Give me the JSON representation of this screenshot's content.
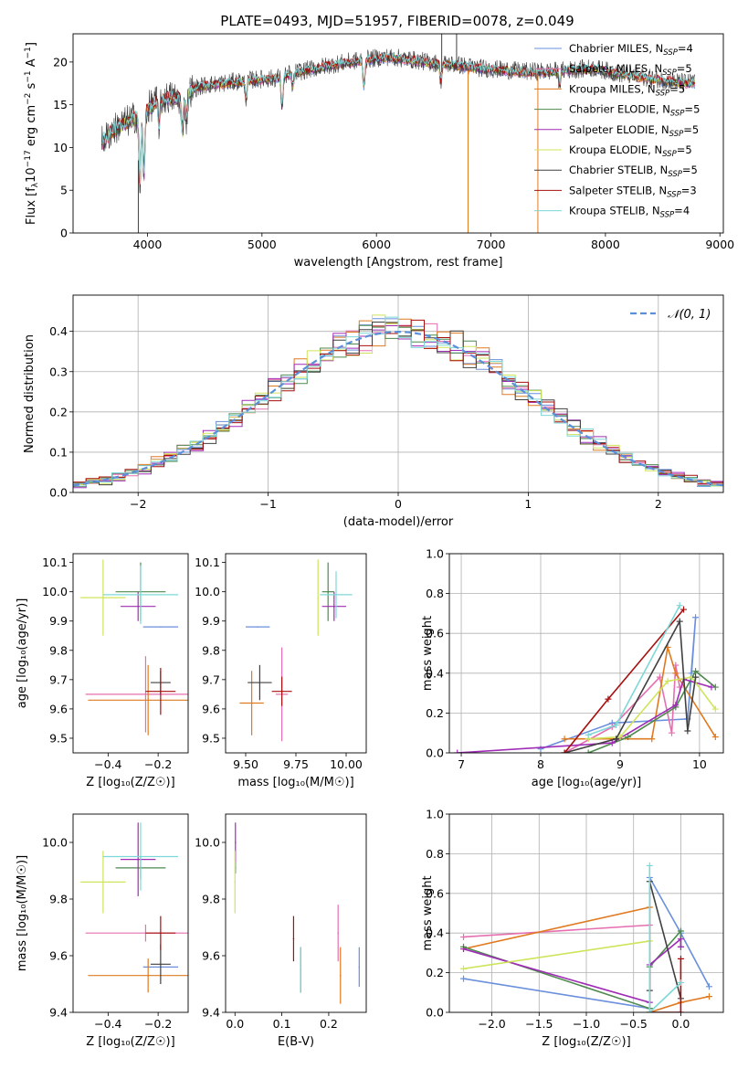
{
  "figure": {
    "title": "PLATE=0493, MJD=51957, FIBERID=0078, z=0.049"
  },
  "colors": {
    "series": [
      "#6a8fdc",
      "#e56fb0",
      "#e07a20",
      "#4e8a4e",
      "#a02cb6",
      "#cfe45a",
      "#404040",
      "#a80f0f",
      "#7ed8d8"
    ],
    "grid": "#b0b0b0",
    "normal_curve": "#5b8fd9"
  },
  "chart_data": [
    {
      "id": "spectrum",
      "type": "line",
      "title": "PLATE=0493, MJD=51957, FIBERID=0078, z=0.049",
      "xlabel": "wavelength [Angstrom, rest frame]",
      "ylabel_parts": [
        "Flux [f",
        "λ",
        "10",
        "−17",
        " erg cm",
        "−2",
        " s",
        "−1",
        " A",
        "−1",
        "]"
      ],
      "xlim": [
        3350,
        9030
      ],
      "ylim": [
        0,
        23.3
      ],
      "xticks": [
        "4000",
        "5000",
        "6000",
        "7000",
        "8000",
        "9000"
      ],
      "xtick_values": [
        4000,
        5000,
        6000,
        7000,
        8000,
        9000
      ],
      "yticks": [
        "0",
        "5",
        "10",
        "15",
        "20"
      ],
      "ytick_values": [
        0,
        5,
        10,
        15,
        20
      ],
      "grid": false,
      "legend_position": "top-right",
      "legend": [
        {
          "name": "Chabrier MILES",
          "nssp": "4"
        },
        {
          "name": "Salpeter MILES",
          "nssp": "5"
        },
        {
          "name": "Kroupa MILES",
          "nssp": "5"
        },
        {
          "name": "Chabrier ELODIE",
          "nssp": "5"
        },
        {
          "name": "Salpeter ELODIE",
          "nssp": "5"
        },
        {
          "name": "Kroupa ELODIE",
          "nssp": "5"
        },
        {
          "name": "Chabrier STELIB",
          "nssp": "5"
        },
        {
          "name": "Salpeter STELIB",
          "nssp": "3"
        },
        {
          "name": "Kroupa STELIB",
          "nssp": "4"
        }
      ],
      "legend_color_index": [
        0,
        1,
        2,
        3,
        4,
        5,
        6,
        7,
        8
      ],
      "nssp_prefix": "N",
      "nssp_sub": "SSP",
      "continuum": {
        "x": [
          3600,
          3700,
          3800,
          3900,
          4000,
          4100,
          4200,
          4300,
          4400,
          4500,
          4700,
          4900,
          5100,
          5300,
          5500,
          5700,
          5900,
          6100,
          6300,
          6500,
          6700,
          6900,
          7100,
          7300,
          7500,
          7700,
          7900,
          8100,
          8300,
          8500,
          8700
        ],
        "y": [
          10.5,
          12.0,
          12.8,
          13.5,
          14.5,
          15.5,
          15.8,
          15.6,
          16.8,
          17.2,
          17.5,
          17.8,
          18.0,
          18.7,
          19.3,
          19.8,
          20.2,
          20.5,
          20.2,
          19.8,
          19.6,
          19.2,
          19.0,
          18.8,
          18.8,
          19.0,
          19.2,
          18.6,
          18.2,
          17.8,
          17.5
        ]
      },
      "absorption_features": [
        {
          "x": 3934,
          "depth": 8.5
        },
        {
          "x": 3969,
          "depth": 7.5
        },
        {
          "x": 4102,
          "depth": 3
        },
        {
          "x": 4304,
          "depth": 4
        },
        {
          "x": 4340,
          "depth": 3
        },
        {
          "x": 4861,
          "depth": 2
        },
        {
          "x": 5175,
          "depth": 3.5
        },
        {
          "x": 5270,
          "depth": 1.5
        },
        {
          "x": 5890,
          "depth": 3
        },
        {
          "x": 6563,
          "depth": 2
        },
        {
          "x": 7600,
          "depth": 1.5
        }
      ],
      "spikes": [
        {
          "x": 3920,
          "y_low": 0,
          "y_high": 8.5,
          "color_index": 6
        },
        {
          "x": 6570,
          "y_low": 18.8,
          "y_high": 23.3,
          "color_index": 6
        },
        {
          "x": 6700,
          "y_low": 19.3,
          "y_high": 23.3,
          "color_index": 6
        },
        {
          "x": 6800,
          "y_low": 0,
          "y_high": 19.0,
          "color_index": 2
        },
        {
          "x": 7410,
          "y_low": 0,
          "y_high": 18.5,
          "color_index": 2
        }
      ]
    },
    {
      "id": "residuals",
      "type": "histogram",
      "xlabel": "(data-model)/error",
      "ylabel": "Normed distribution",
      "xlim": [
        -2.5,
        2.5
      ],
      "ylim": [
        0,
        0.49
      ],
      "xticks": [
        "−2",
        "−1",
        "0",
        "1",
        "2"
      ],
      "xtick_values": [
        -2,
        -1,
        0,
        1,
        2
      ],
      "yticks": [
        "0.0",
        "0.1",
        "0.2",
        "0.3",
        "0.4"
      ],
      "ytick_values": [
        0,
        0.1,
        0.2,
        0.3,
        0.4
      ],
      "grid": true,
      "legend_position": "top-right",
      "legend": [
        {
          "label": "𝒩(0, 1)"
        }
      ],
      "bin_width": 0.1,
      "normal_curve": {
        "mean": 0,
        "sigma": 1,
        "style": "dashed"
      }
    },
    {
      "id": "age_vs_Z",
      "type": "errorbar",
      "xlabel": "Z [log₁₀(Z/Z☉)]",
      "ylabel": "age  [log₁₀(age/yr)]",
      "xlim": [
        -0.54,
        -0.08
      ],
      "ylim": [
        9.45,
        10.13
      ],
      "xticks": [
        "−0.4",
        "−0.2"
      ],
      "xtick_values": [
        -0.4,
        -0.2
      ],
      "yticks": [
        "9.5",
        "9.6",
        "9.7",
        "9.8",
        "9.9",
        "10.0",
        "10.1"
      ],
      "ytick_values": [
        9.5,
        9.6,
        9.7,
        9.8,
        9.9,
        10.0,
        10.1
      ],
      "grid": false,
      "points": [
        {
          "x": -0.19,
          "y": 9.88,
          "xerr": 0.07,
          "yerr": 0.0,
          "color_index": 0
        },
        {
          "x": -0.25,
          "y": 9.65,
          "xerr": 0.24,
          "yerr": 0.13,
          "color_index": 1
        },
        {
          "x": -0.24,
          "y": 9.63,
          "xerr": 0.24,
          "yerr": 0.12,
          "color_index": 2
        },
        {
          "x": -0.27,
          "y": 10.0,
          "xerr": 0.1,
          "yerr": 0.1,
          "color_index": 3
        },
        {
          "x": -0.28,
          "y": 9.95,
          "xerr": 0.07,
          "yerr": 0.05,
          "color_index": 4
        },
        {
          "x": -0.42,
          "y": 9.98,
          "xerr": 0.09,
          "yerr": 0.13,
          "color_index": 5
        },
        {
          "x": -0.19,
          "y": 9.69,
          "xerr": 0.04,
          "yerr": 0.04,
          "color_index": 6
        },
        {
          "x": -0.19,
          "y": 9.66,
          "xerr": 0.06,
          "yerr": 0.08,
          "color_index": 7
        },
        {
          "x": -0.27,
          "y": 9.99,
          "xerr": 0.15,
          "yerr": 0.1,
          "color_index": 8
        }
      ]
    },
    {
      "id": "age_vs_mass",
      "type": "errorbar",
      "xlabel": "mass [log₁₀(M/M☉)]",
      "ylabel": "",
      "xlim": [
        9.4,
        10.1
      ],
      "ylim": [
        9.45,
        10.13
      ],
      "xticks": [
        "9.50",
        "9.75",
        "10.00"
      ],
      "xtick_values": [
        9.5,
        9.75,
        10.0
      ],
      "yticks": [
        "9.5",
        "9.6",
        "9.7",
        "9.8",
        "9.9",
        "10.0",
        "10.1"
      ],
      "ytick_values": [
        9.5,
        9.6,
        9.7,
        9.8,
        9.9,
        10.0,
        10.1
      ],
      "grid": false,
      "points": [
        {
          "x": 9.56,
          "y": 9.88,
          "xerr": 0.06,
          "yerr": 0.0,
          "color_index": 0
        },
        {
          "x": 9.68,
          "y": 9.65,
          "xerr": 0.03,
          "yerr": 0.16,
          "color_index": 1
        },
        {
          "x": 9.53,
          "y": 9.62,
          "xerr": 0.06,
          "yerr": 0.11,
          "color_index": 2
        },
        {
          "x": 9.91,
          "y": 10.0,
          "xerr": 0.03,
          "yerr": 0.1,
          "color_index": 3
        },
        {
          "x": 9.94,
          "y": 9.95,
          "xerr": 0.06,
          "yerr": 0.05,
          "color_index": 4
        },
        {
          "x": 9.86,
          "y": 9.98,
          "xerr": 0.0,
          "yerr": 0.13,
          "color_index": 5
        },
        {
          "x": 9.57,
          "y": 9.69,
          "xerr": 0.06,
          "yerr": 0.06,
          "color_index": 6
        },
        {
          "x": 9.68,
          "y": 9.66,
          "xerr": 0.05,
          "yerr": 0.05,
          "color_index": 7
        },
        {
          "x": 9.95,
          "y": 9.99,
          "xerr": 0.08,
          "yerr": 0.08,
          "color_index": 8
        }
      ]
    },
    {
      "id": "mass_weight_vs_age",
      "type": "line",
      "xlabel": "age  [log₁₀(age/yr)]",
      "ylabel": "mass weight",
      "xlim": [
        6.85,
        10.3
      ],
      "ylim": [
        0,
        1.0
      ],
      "xticks": [
        "7",
        "8",
        "9",
        "10"
      ],
      "xtick_values": [
        7,
        8,
        9,
        10
      ],
      "yticks": [
        "0.0",
        "0.2",
        "0.4",
        "0.6",
        "0.8",
        "1.0"
      ],
      "ytick_values": [
        0,
        0.2,
        0.4,
        0.6,
        0.8,
        1.0
      ],
      "grid": true,
      "series": [
        {
          "color_index": 0,
          "x": [
            8.0,
            8.9,
            9.85,
            9.95,
            9.9,
            9.85
          ],
          "y": [
            0.02,
            0.15,
            0.17,
            0.68,
            0.4,
            0.17
          ]
        },
        {
          "color_index": 1,
          "x": [
            8.3,
            8.9,
            9.5,
            9.65,
            9.7,
            9.75
          ],
          "y": [
            0.0,
            0.13,
            0.38,
            0.1,
            0.44,
            0.33
          ]
        },
        {
          "color_index": 2,
          "x": [
            8.3,
            9.4,
            9.6,
            9.7,
            10.2
          ],
          "y": [
            0.07,
            0.07,
            0.53,
            0.4,
            0.08
          ]
        },
        {
          "color_index": 3,
          "x": [
            8.6,
            9.1,
            9.7,
            9.95,
            10.2
          ],
          "y": [
            0.0,
            0.08,
            0.23,
            0.41,
            0.33
          ]
        },
        {
          "color_index": 4,
          "x": [
            6.95,
            8.9,
            9.7,
            9.8,
            10.15
          ],
          "y": [
            0.0,
            0.05,
            0.24,
            0.37,
            0.33
          ]
        },
        {
          "color_index": 5,
          "x": [
            8.6,
            9.0,
            9.6,
            9.9,
            10.2
          ],
          "y": [
            0.07,
            0.08,
            0.36,
            0.38,
            0.22
          ]
        },
        {
          "color_index": 6,
          "x": [
            8.3,
            8.95,
            9.75,
            9.85,
            9.95
          ],
          "y": [
            0.0,
            0.07,
            0.66,
            0.11,
            0.38
          ]
        },
        {
          "color_index": 7,
          "x": [
            8.3,
            8.85,
            9.8
          ],
          "y": [
            0.0,
            0.27,
            0.72
          ]
        },
        {
          "color_index": 8,
          "x": [
            8.6,
            8.95,
            9.75
          ],
          "y": [
            0.09,
            0.14,
            0.74
          ]
        }
      ]
    },
    {
      "id": "mass_vs_Z",
      "type": "errorbar",
      "xlabel": "Z [log₁₀(Z/Z☉)]",
      "ylabel": "mass [log₁₀(M/M☉)]",
      "xlim": [
        -0.54,
        -0.08
      ],
      "ylim": [
        9.4,
        10.1
      ],
      "xticks": [
        "−0.4",
        "−0.2"
      ],
      "xtick_values": [
        -0.4,
        -0.2
      ],
      "yticks": [
        "9.4",
        "9.6",
        "9.8",
        "10.0"
      ],
      "ytick_values": [
        9.4,
        9.6,
        9.8,
        10.0
      ],
      "grid": false,
      "points": [
        {
          "x": -0.19,
          "y": 9.56,
          "xerr": 0.07,
          "yerr": 0.0,
          "color_index": 0
        },
        {
          "x": -0.25,
          "y": 9.68,
          "xerr": 0.24,
          "yerr": 0.03,
          "color_index": 1
        },
        {
          "x": -0.24,
          "y": 9.53,
          "xerr": 0.24,
          "yerr": 0.06,
          "color_index": 2
        },
        {
          "x": -0.27,
          "y": 9.91,
          "xerr": 0.1,
          "yerr": 0.04,
          "color_index": 3
        },
        {
          "x": -0.28,
          "y": 9.94,
          "xerr": 0.07,
          "yerr": 0.13,
          "color_index": 4
        },
        {
          "x": -0.42,
          "y": 9.86,
          "xerr": 0.09,
          "yerr": 0.11,
          "color_index": 5
        },
        {
          "x": -0.19,
          "y": 9.57,
          "xerr": 0.04,
          "yerr": 0.07,
          "color_index": 6
        },
        {
          "x": -0.19,
          "y": 9.68,
          "xerr": 0.06,
          "yerr": 0.06,
          "color_index": 7
        },
        {
          "x": -0.27,
          "y": 9.95,
          "xerr": 0.15,
          "yerr": 0.12,
          "color_index": 8
        }
      ]
    },
    {
      "id": "mass_vs_ebv",
      "type": "errorbar",
      "xlabel": "E(B-V)",
      "ylabel": "",
      "xlim": [
        -0.02,
        0.28
      ],
      "ylim": [
        9.4,
        10.1
      ],
      "xticks": [
        "0.0",
        "0.1",
        "0.2"
      ],
      "xtick_values": [
        0,
        0.1,
        0.2
      ],
      "yticks": [
        "9.4",
        "9.6",
        "9.8",
        "10.0"
      ],
      "ytick_values": [
        9.4,
        9.6,
        9.8,
        10.0
      ],
      "grid": false,
      "points": [
        {
          "x": 0.265,
          "y": 9.56,
          "xerr": 0,
          "yerr": 0.07,
          "color_index": 0
        },
        {
          "x": 0.22,
          "y": 9.68,
          "xerr": 0,
          "yerr": 0.1,
          "color_index": 1
        },
        {
          "x": 0.225,
          "y": 9.53,
          "xerr": 0,
          "yerr": 0.1,
          "color_index": 2
        },
        {
          "x": 0.001,
          "y": 9.91,
          "xerr": 0,
          "yerr": 0.02,
          "color_index": 3
        },
        {
          "x": 0.001,
          "y": 10.0,
          "xerr": 0,
          "yerr": 0.07,
          "color_index": 4
        },
        {
          "x": 0.0,
          "y": 9.86,
          "xerr": 0,
          "yerr": 0.11,
          "color_index": 5
        },
        {
          "x": 0.14,
          "y": 9.55,
          "xerr": 0,
          "yerr": 0.08,
          "color_index": 6
        },
        {
          "x": 0.125,
          "y": 9.66,
          "xerr": 0,
          "yerr": 0.08,
          "color_index": 7
        },
        {
          "x": 0.14,
          "y": 9.55,
          "xerr": 0,
          "yerr": 0.08,
          "color_index": 8
        }
      ]
    },
    {
      "id": "mass_weight_vs_Z",
      "type": "line",
      "xlabel": "Z [log₁₀(Z/Z☉)]",
      "ylabel": "mass weight",
      "xlim": [
        -2.45,
        0.45
      ],
      "ylim": [
        0,
        1.0
      ],
      "xticks": [
        "−2.0",
        "−1.5",
        "−1.0",
        "−0.5",
        "0.0"
      ],
      "xtick_values": [
        -2.0,
        -1.5,
        -1.0,
        -0.5,
        0.0
      ],
      "yticks": [
        "0.0",
        "0.2",
        "0.4",
        "0.6",
        "0.8",
        "1.0"
      ],
      "ytick_values": [
        0,
        0.2,
        0.4,
        0.6,
        0.8,
        1.0
      ],
      "grid": true,
      "series": [
        {
          "color_index": 0,
          "x": [
            -2.3,
            -0.33,
            -0.33,
            0.0,
            0.3
          ],
          "y": [
            0.17,
            0.02,
            0.68,
            0.4,
            0.13
          ]
        },
        {
          "color_index": 1,
          "x": [
            -2.3,
            -0.33
          ],
          "y": [
            0.38,
            0.44
          ]
        },
        {
          "color_index": 2,
          "x": [
            -2.3,
            -0.33,
            -0.33,
            0.0,
            0.3
          ],
          "y": [
            0.32,
            0.53,
            0.0,
            0.05,
            0.08
          ]
        },
        {
          "color_index": 3,
          "x": [
            -2.3,
            -0.33,
            -0.33,
            0.0,
            0.0
          ],
          "y": [
            0.33,
            0.02,
            0.23,
            0.41,
            0.33
          ]
        },
        {
          "color_index": 4,
          "x": [
            -2.3,
            -0.33,
            -0.33,
            0.0,
            0.0
          ],
          "y": [
            0.32,
            0.05,
            0.24,
            0.37,
            0.33
          ]
        },
        {
          "color_index": 5,
          "x": [
            -2.3,
            -0.33
          ],
          "y": [
            0.22,
            0.36
          ]
        },
        {
          "color_index": 6,
          "x": [
            -0.33,
            -0.33,
            0.0
          ],
          "y": [
            0.11,
            0.66,
            0.07
          ]
        },
        {
          "color_index": 7,
          "x": [
            -0.33,
            0.0,
            0.0
          ],
          "y": [
            0.0,
            0.0,
            0.27
          ]
        },
        {
          "color_index": 8,
          "x": [
            -0.33,
            -0.33,
            0.0
          ],
          "y": [
            0.74,
            0.0,
            0.15
          ]
        }
      ]
    }
  ]
}
